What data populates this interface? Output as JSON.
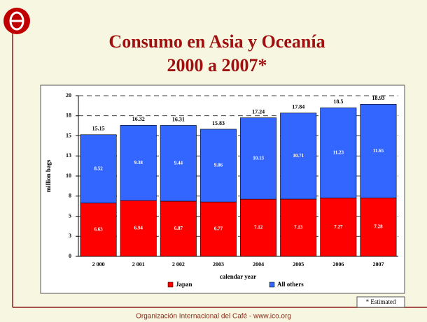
{
  "chart_data": {
    "type": "stacked_bar",
    "title": "Consumo en Asia y Oceanía",
    "subtitle": "2000 a 2007*",
    "y_label": "million bags",
    "x_label": "calendar year",
    "categories": [
      "2 000",
      "2 001",
      "2 002",
      "2003",
      "2004",
      "2005",
      "2006",
      "2007"
    ],
    "series": [
      {
        "name": "Japan",
        "color": "#ff0000",
        "values": [
          6.63,
          6.94,
          6.87,
          6.77,
          7.12,
          7.13,
          7.27,
          7.28
        ]
      },
      {
        "name": "All others",
        "color": "#3366ff",
        "values": [
          8.52,
          9.38,
          9.44,
          9.06,
          10.13,
          10.71,
          11.23,
          11.65
        ]
      }
    ],
    "totals": [
      15.15,
      16.32,
      16.31,
      15.83,
      17.24,
      17.84,
      18.5,
      18.93
    ],
    "ylim": [
      0,
      20
    ],
    "yticks": [
      0,
      {
        "value": 2.5,
        "label": "3"
      },
      5,
      {
        "value": 7.5,
        "label": "8"
      },
      10,
      {
        "value": 12.5,
        "label": "13"
      },
      15,
      {
        "value": 17.5,
        "label": "18"
      },
      20
    ],
    "grid": true,
    "footnote": "* Estimated",
    "footer": "Organización Internacional del Café  -  www.ico.org"
  }
}
